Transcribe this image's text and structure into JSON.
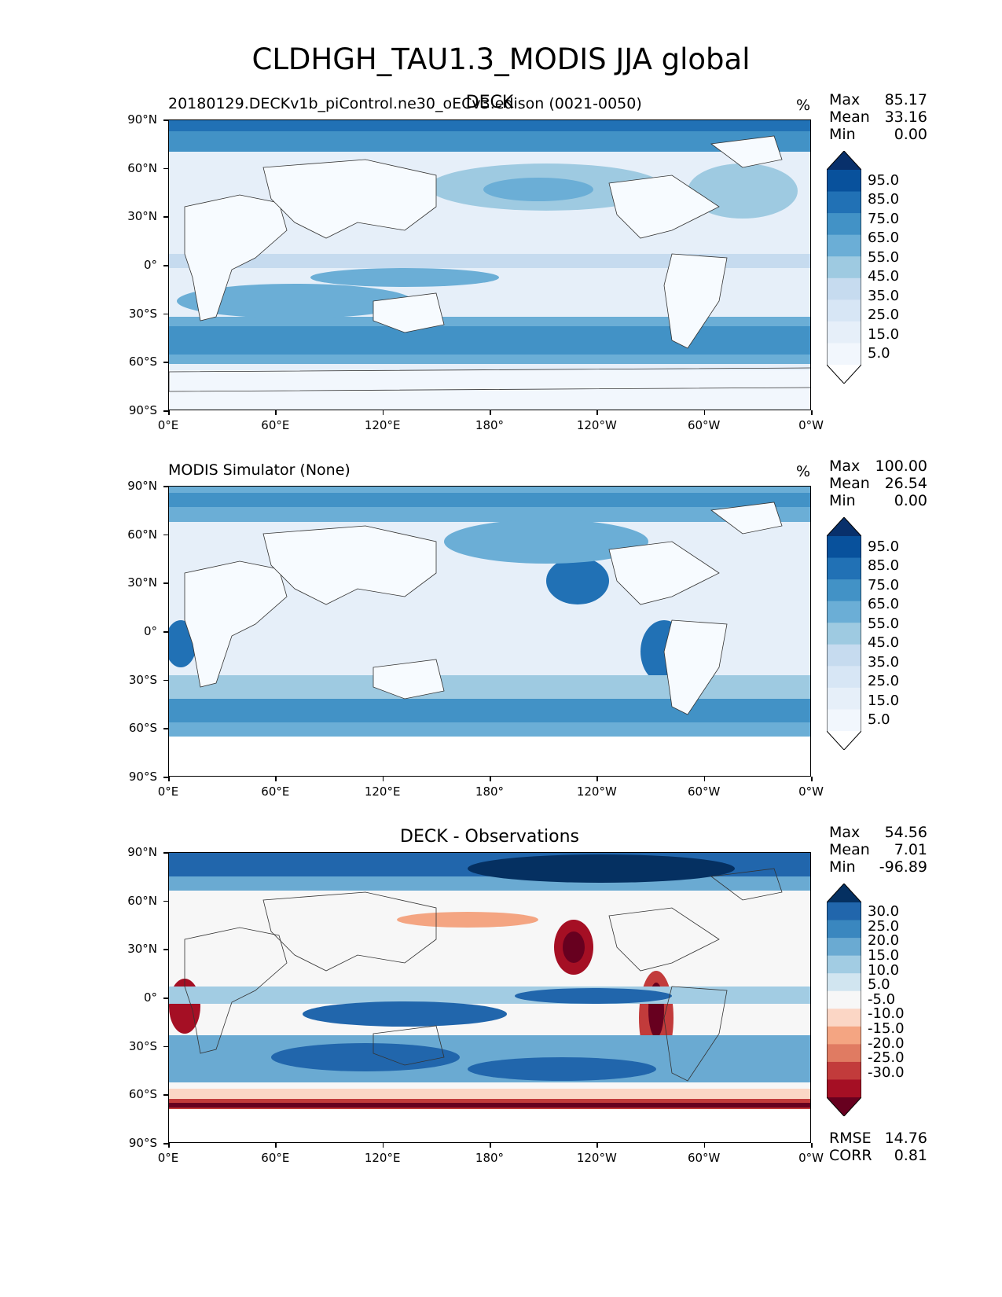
{
  "figure_title": "CLDHGH_TAU1.3_MODIS JJA global",
  "panels": [
    {
      "left_title": "20180129.DECKv1b_piControl.ne30_oECv3.edison (0021-0050)",
      "center_title": "DECK",
      "units": "%",
      "stats": {
        "max_label": "Max",
        "max": "85.17",
        "mean_label": "Mean",
        "mean": "33.16",
        "min_label": "Min",
        "min": "0.00"
      },
      "colorbar": {
        "labels": [
          "95.0",
          "85.0",
          "75.0",
          "65.0",
          "55.0",
          "45.0",
          "35.0",
          "25.0",
          "15.0",
          "5.0"
        ],
        "colors": [
          "#08306b",
          "#08519c",
          "#2171b5",
          "#4292c6",
          "#6baed6",
          "#9ecae1",
          "#c6dbef",
          "#d7e6f5",
          "#e6eff9",
          "#f2f7fd",
          "#ffffff"
        ]
      }
    },
    {
      "left_title": "MODIS Simulator (None)",
      "center_title": "",
      "units": "%",
      "stats": {
        "max_label": "Max",
        "max": "100.00",
        "mean_label": "Mean",
        "mean": "26.54",
        "min_label": "Min",
        "min": "0.00"
      },
      "colorbar": {
        "labels": [
          "95.0",
          "85.0",
          "75.0",
          "65.0",
          "55.0",
          "45.0",
          "35.0",
          "25.0",
          "15.0",
          "5.0"
        ],
        "colors": [
          "#08306b",
          "#08519c",
          "#2171b5",
          "#4292c6",
          "#6baed6",
          "#9ecae1",
          "#c6dbef",
          "#d7e6f5",
          "#e6eff9",
          "#f2f7fd",
          "#ffffff"
        ]
      }
    },
    {
      "left_title": "",
      "center_title": "DECK - Observations",
      "units": "",
      "stats": {
        "max_label": "Max",
        "max": "54.56",
        "mean_label": "Mean",
        "mean": "7.01",
        "min_label": "Min",
        "min": "-96.89"
      },
      "colorbar": {
        "labels": [
          "30.0",
          "25.0",
          "20.0",
          "15.0",
          "10.0",
          "5.0",
          "-5.0",
          "-10.0",
          "-15.0",
          "-20.0",
          "-25.0",
          "-30.0"
        ],
        "colors": [
          "#053061",
          "#2166ac",
          "#3a87bf",
          "#6aaad2",
          "#a2cce3",
          "#d1e5f0",
          "#f7f7f7",
          "#fbd6c5",
          "#f4a582",
          "#e07b62",
          "#c23b3b",
          "#a50f24",
          "#67001f"
        ]
      },
      "metrics": {
        "rmse_label": "RMSE",
        "rmse": "14.76",
        "corr_label": "CORR",
        "corr": "0.81"
      }
    }
  ],
  "axes": {
    "lat_ticks": [
      "90°N",
      "60°N",
      "30°N",
      "0°",
      "30°S",
      "60°S",
      "90°S"
    ],
    "lon_ticks": [
      "0°E",
      "60°E",
      "120°E",
      "180°",
      "120°W",
      "60°W",
      "0°W"
    ]
  }
}
